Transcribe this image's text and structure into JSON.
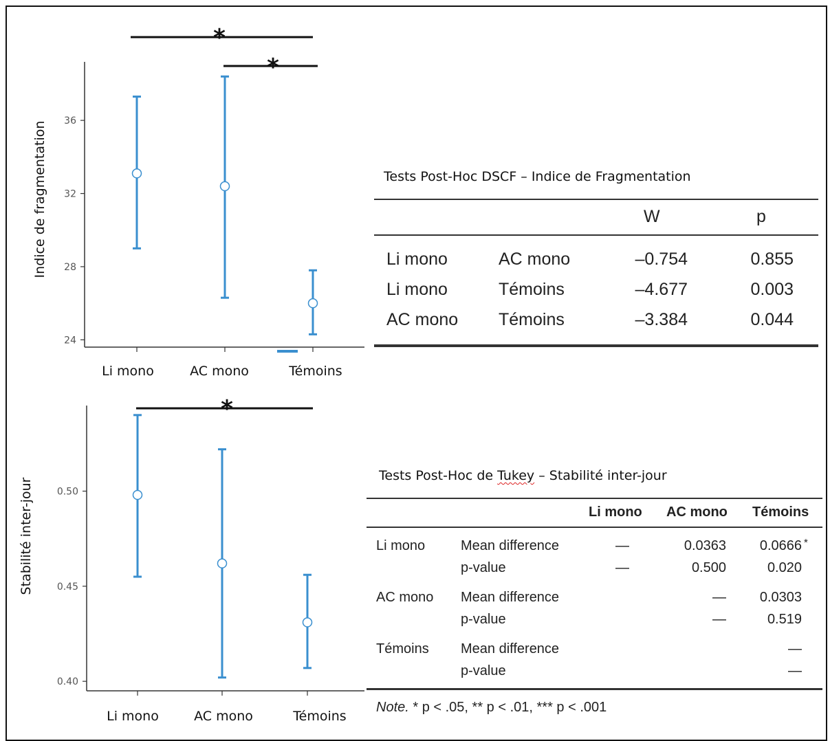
{
  "chart_data": [
    {
      "type": "errorbar",
      "ylabel": "Indice de fragmentation",
      "categories": [
        "Li mono",
        "AC mono",
        "Témoins"
      ],
      "yticks": [
        24,
        28,
        32,
        36
      ],
      "ylim": [
        23.6,
        39.2
      ],
      "points": [
        {
          "category": "Li mono",
          "mean": 33.1,
          "lower": 29.0,
          "upper": 37.3
        },
        {
          "category": "AC mono",
          "mean": 32.4,
          "lower": 26.3,
          "upper": 38.4
        },
        {
          "category": "Témoins",
          "mean": 26.0,
          "lower": 24.3,
          "upper": 27.8
        }
      ],
      "significance": [
        {
          "from": "Li mono",
          "to": "Témoins",
          "label": "*"
        },
        {
          "from": "AC mono",
          "to": "Témoins",
          "label": "*"
        }
      ]
    },
    {
      "type": "errorbar",
      "ylabel": "Stabilité inter-jour",
      "categories": [
        "Li mono",
        "AC mono",
        "Témoins"
      ],
      "yticks": [
        0.4,
        0.45,
        0.5
      ],
      "ytick_labels": [
        "0.40",
        "0.45",
        "0.50"
      ],
      "ylim": [
        0.395,
        0.545
      ],
      "points": [
        {
          "category": "Li mono",
          "mean": 0.498,
          "lower": 0.455,
          "upper": 0.54
        },
        {
          "category": "AC mono",
          "mean": 0.462,
          "lower": 0.402,
          "upper": 0.522
        },
        {
          "category": "Témoins",
          "mean": 0.431,
          "lower": 0.407,
          "upper": 0.456
        }
      ],
      "significance": [
        {
          "from": "Li mono",
          "to": "Témoins",
          "label": "*"
        }
      ]
    }
  ],
  "dscf": {
    "title": "Tests Post-Hoc DSCF – Indice de Fragmentation",
    "headers": [
      "W",
      "p"
    ],
    "rows": [
      {
        "g1": "Li mono",
        "g2": "AC mono",
        "W": "–0.754",
        "p": "0.855"
      },
      {
        "g1": "Li mono",
        "g2": "Témoins",
        "W": "–4.677",
        "p": "0.003"
      },
      {
        "g1": "AC mono",
        "g2": "Témoins",
        "W": "–3.384",
        "p": "0.044"
      }
    ]
  },
  "tukey": {
    "title_pre": "Tests Post-Hoc de ",
    "title_word": "Tukey",
    "title_post": " – Stabilité inter-jour",
    "headers": [
      "Li mono",
      "AC mono",
      "Témoins"
    ],
    "groups": [
      {
        "name": "Li mono",
        "rows": [
          {
            "label": "Mean difference",
            "vals": [
              "—",
              "0.0363",
              "0.0666"
            ],
            "sig": "*"
          },
          {
            "label": "p-value",
            "vals": [
              "—",
              "0.500",
              "0.020"
            ],
            "sig": ""
          }
        ]
      },
      {
        "name": "AC mono",
        "rows": [
          {
            "label": "Mean difference",
            "vals": [
              "",
              "—",
              "0.0303"
            ],
            "sig": ""
          },
          {
            "label": "p-value",
            "vals": [
              "",
              "—",
              "0.519"
            ],
            "sig": ""
          }
        ]
      },
      {
        "name": "Témoins",
        "rows": [
          {
            "label": "Mean difference",
            "vals": [
              "",
              "",
              "—"
            ],
            "sig": ""
          },
          {
            "label": "p-value",
            "vals": [
              "",
              "",
              "—"
            ],
            "sig": ""
          }
        ]
      }
    ],
    "note_label": "Note.",
    "note_text": " * p < .05, ** p < .01, *** p < .001"
  },
  "colors": {
    "series": "#3a8fcf",
    "axis": "#333333"
  }
}
